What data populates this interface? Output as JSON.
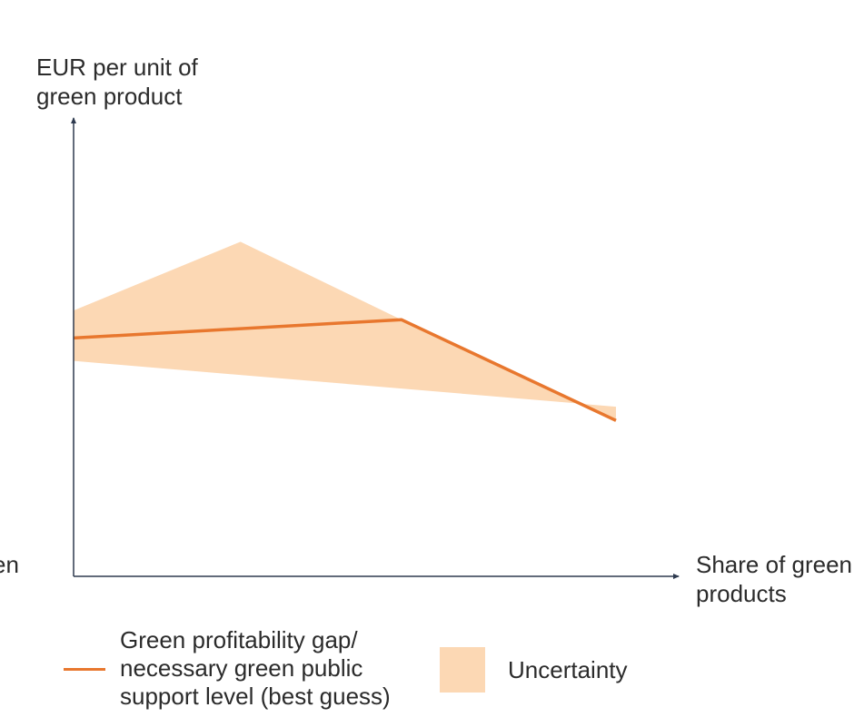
{
  "colors": {
    "line": "#E8772E",
    "band": "#FCD8B4",
    "axis": "#2E3A4F",
    "text": "#2b2b2b"
  },
  "chart_data": {
    "type": "line",
    "title": "",
    "ylabel_lines": [
      "EUR per unit of",
      "green product"
    ],
    "xlabel_lines": [
      "Share of green",
      "products"
    ],
    "left_clipped_text": "en",
    "xlim": [
      0,
      100
    ],
    "ylim": [
      0,
      100
    ],
    "grid": false,
    "series": [
      {
        "name": "Green profitability gap/ necessary green public support level (best guess)",
        "type": "line",
        "x": [
          0,
          55,
          91
        ],
        "y": [
          52,
          56,
          34
        ]
      },
      {
        "name": "Uncertainty",
        "type": "band",
        "upper": {
          "x": [
            0,
            28,
            55,
            91
          ],
          "y": [
            58,
            73,
            56,
            34
          ]
        },
        "lower": {
          "x": [
            0,
            91
          ],
          "y": [
            47,
            37
          ]
        }
      }
    ],
    "legend": {
      "placement": "bottom",
      "items": [
        {
          "kind": "line",
          "label_lines": [
            "Green profitability gap/",
            "necessary green public",
            "support level (best guess)"
          ]
        },
        {
          "kind": "area",
          "label": "Uncertainty"
        }
      ]
    }
  }
}
